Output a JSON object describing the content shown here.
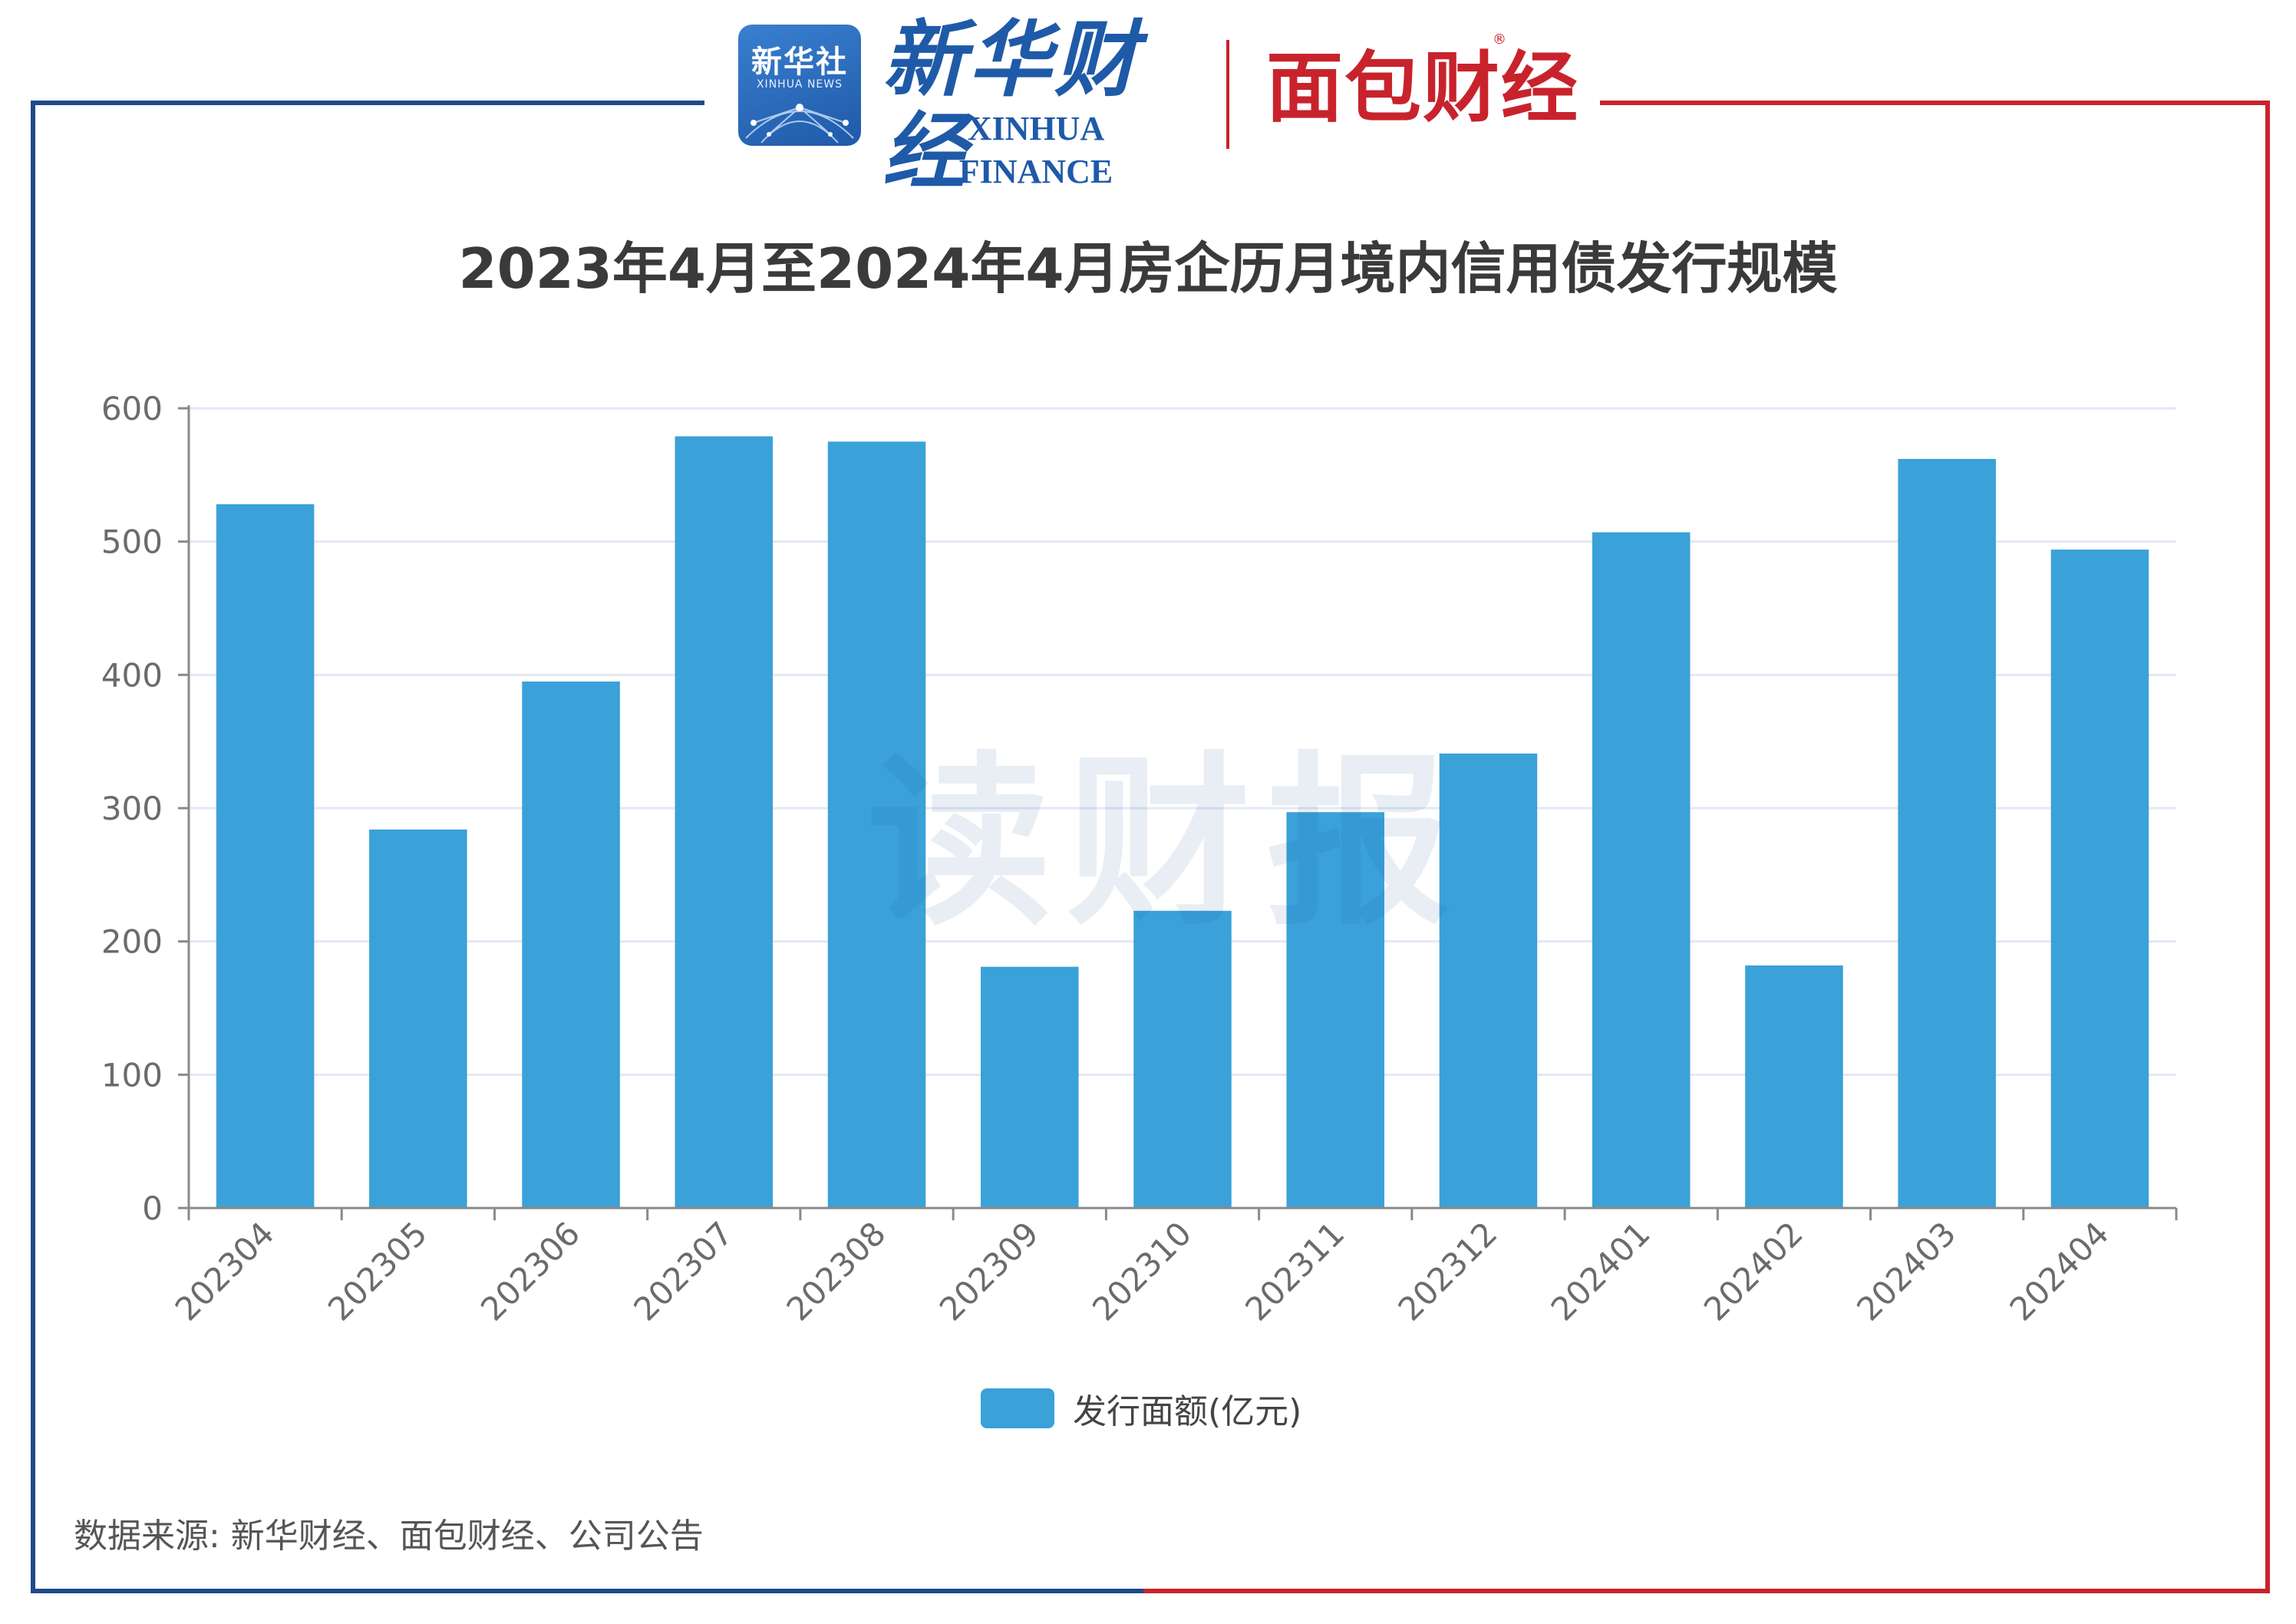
{
  "header": {
    "logo1_text": "新华社",
    "logo1_sub": "XINHUA NEWS",
    "logo2_cn": "新华财经",
    "logo2_en": "XINHUA FINANCE",
    "logo3_text": "面包财经",
    "logo3_reg": "®"
  },
  "watermark": "读财报",
  "source": "数据来源: 新华财经、面包财经、公司公告",
  "colors": {
    "bar": "#3aa1d9",
    "frame_left": "#1f4a8c",
    "frame_right": "#c8232c",
    "grid": "#e3e8f3",
    "axis": "#8a8a8a"
  },
  "chart_data": {
    "type": "bar",
    "title": "2023年4月至2024年4月房企历月境内信用债发行规模",
    "categories": [
      "202304",
      "202305",
      "202306",
      "202307",
      "202308",
      "202309",
      "202310",
      "202311",
      "202312",
      "202401",
      "202402",
      "202403",
      "202404"
    ],
    "series": [
      {
        "name": "发行面额(亿元)",
        "values": [
          528,
          284,
          395,
          579,
          575,
          181,
          223,
          297,
          341,
          507,
          182,
          562,
          494
        ]
      }
    ],
    "ylim": [
      0,
      600
    ],
    "yticks": [
      0,
      100,
      200,
      300,
      400,
      500,
      600
    ],
    "grid": true,
    "legend": "bottom-center",
    "xlabel": "",
    "ylabel": ""
  }
}
